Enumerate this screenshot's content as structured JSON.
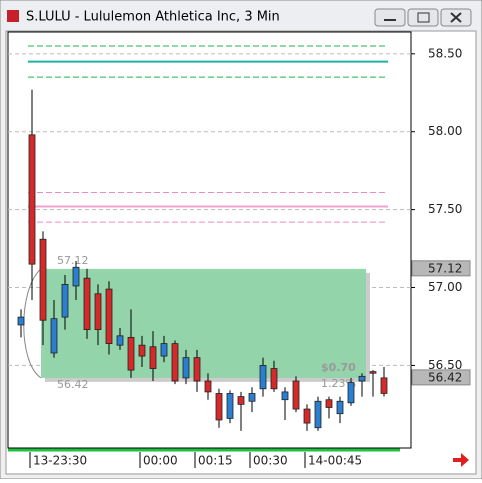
{
  "window": {
    "title": "S.LULU - Lululemon Athletica Inc, 3 Min"
  },
  "chart_data": {
    "type": "candlestick",
    "categories": [
      null,
      "13-23:30",
      null,
      null,
      null,
      null,
      null,
      null,
      null,
      null,
      null,
      "00:00",
      null,
      null,
      null,
      null,
      "00:15",
      null,
      null,
      null,
      null,
      "00:30",
      null,
      null,
      null,
      null,
      "14-00:45",
      null,
      null,
      null,
      null,
      null,
      null,
      null
    ],
    "open": [
      56.76,
      57.98,
      57.31,
      56.58,
      56.81,
      57.01,
      57.06,
      56.96,
      56.99,
      56.63,
      56.68,
      56.63,
      56.62,
      56.56,
      56.64,
      56.42,
      56.55,
      56.4,
      56.32,
      56.16,
      56.3,
      56.27,
      56.35,
      56.48,
      56.28,
      56.4,
      56.22,
      56.1,
      56.28,
      56.19,
      56.26,
      56.4,
      56.46,
      56.42
    ],
    "high": [
      56.86,
      58.27,
      57.36,
      56.92,
      57.08,
      57.17,
      57.12,
      57.02,
      57.04,
      56.74,
      56.86,
      56.69,
      56.72,
      56.69,
      56.66,
      56.6,
      56.6,
      56.45,
      56.35,
      56.34,
      56.33,
      56.36,
      56.55,
      56.53,
      56.36,
      56.43,
      56.25,
      56.3,
      56.3,
      56.3,
      56.42,
      56.45,
      56.47,
      56.49
    ],
    "low": [
      56.68,
      56.92,
      56.63,
      56.55,
      56.73,
      56.92,
      56.67,
      56.63,
      56.57,
      56.6,
      56.42,
      56.49,
      56.4,
      56.52,
      56.38,
      56.38,
      56.33,
      56.28,
      56.1,
      56.13,
      56.08,
      56.2,
      56.3,
      56.33,
      56.15,
      56.2,
      56.08,
      56.08,
      56.16,
      56.13,
      56.24,
      56.3,
      56.3,
      56.3
    ],
    "close": [
      56.81,
      57.15,
      56.79,
      56.8,
      57.02,
      57.13,
      56.73,
      56.73,
      56.64,
      56.69,
      56.47,
      56.56,
      56.48,
      56.64,
      56.4,
      56.55,
      56.4,
      56.33,
      56.15,
      56.32,
      56.25,
      56.32,
      56.5,
      56.35,
      56.33,
      56.22,
      56.13,
      56.27,
      56.23,
      56.27,
      56.39,
      56.43,
      56.45,
      56.32
    ],
    "up_color": "#2a7fd0",
    "down_color": "#d42a2a",
    "ylim": [
      55.97,
      58.64
    ],
    "yticks": [
      {
        "value": 58.5,
        "label": "58.50"
      },
      {
        "value": 58,
        "label": "58.00"
      },
      {
        "value": 57.5,
        "label": "57.50"
      },
      {
        "value": 57,
        "label": "57.00"
      },
      {
        "value": 56.5,
        "label": "56.50"
      }
    ],
    "grid": true,
    "levels": [
      {
        "value": 58.55,
        "color": "#22b14c",
        "style": "dashed"
      },
      {
        "value": 58.45,
        "color": "#20b0a8",
        "style": "solid"
      },
      {
        "value": 58.35,
        "color": "#22b14c",
        "style": "dashed"
      },
      {
        "value": 57.61,
        "color": "#e88cc8",
        "style": "dashed"
      },
      {
        "value": 57.52,
        "color": "#f0a0d0",
        "style": "solid"
      },
      {
        "value": 57.42,
        "color": "#e88cc8",
        "style": "dashed"
      }
    ],
    "box": {
      "high": 57.12,
      "low": 56.42,
      "change": "$0.70",
      "percent": "1.23%",
      "color": "#8fd4a8"
    }
  }
}
